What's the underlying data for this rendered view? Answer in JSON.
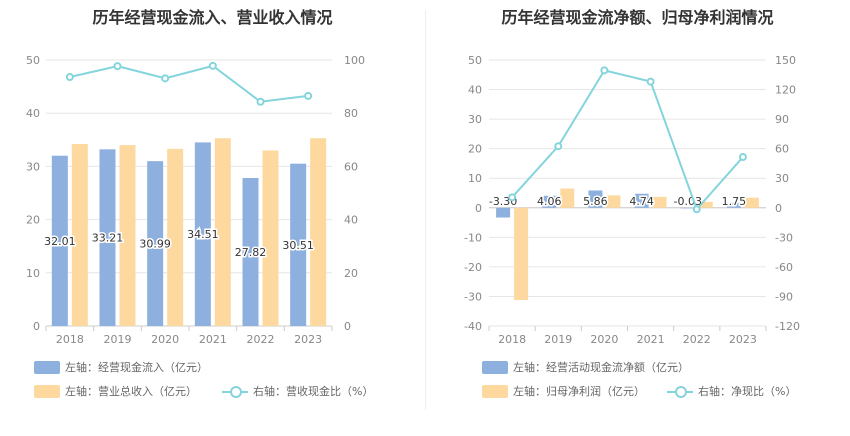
{
  "colors": {
    "bar_primary": "#8eb0de",
    "bar_secondary": "#fdd9a0",
    "line": "#84d4dc",
    "grid": "#e6e6e6",
    "axis_text": "#888888"
  },
  "chart_data": [
    {
      "type": "bar",
      "title": "历年经营现金流入、营业收入情况",
      "categories": [
        "2018",
        "2019",
        "2020",
        "2021",
        "2022",
        "2023"
      ],
      "y_left": {
        "min": 0,
        "max": 50,
        "ticks": [
          0,
          10,
          20,
          30,
          40,
          50
        ]
      },
      "y_right": {
        "min": 0,
        "max": 100,
        "ticks": [
          0,
          20,
          40,
          60,
          80,
          100
        ]
      },
      "series": [
        {
          "name": "经营现金流入",
          "axis": "left",
          "kind": "bar",
          "values": [
            32.01,
            33.21,
            30.99,
            34.51,
            27.82,
            30.51
          ],
          "labels": [
            "32.01",
            "33.21",
            "30.99",
            "34.51",
            "27.82",
            "30.51"
          ]
        },
        {
          "name": "营业总收入",
          "axis": "left",
          "kind": "bar",
          "values": [
            34.2,
            34.0,
            33.3,
            35.3,
            33.0,
            35.3
          ]
        },
        {
          "name": "营收现金比",
          "axis": "right",
          "kind": "line",
          "values": [
            93.6,
            97.7,
            93.1,
            97.8,
            84.3,
            86.5
          ]
        }
      ],
      "legend": [
        {
          "kind": "bar",
          "color_key": "bar_primary",
          "label": "左轴：经营现金流入（亿元）"
        },
        {
          "kind": "bar",
          "color_key": "bar_secondary",
          "label": "左轴：营业总收入（亿元）"
        },
        {
          "kind": "line",
          "color_key": "line",
          "label": "右轴：营收现金比（%）"
        }
      ]
    },
    {
      "type": "bar",
      "title": "历年经营现金流净额、归母净利润情况",
      "categories": [
        "2018",
        "2019",
        "2020",
        "2021",
        "2022",
        "2023"
      ],
      "y_left": {
        "min": -40,
        "max": 50,
        "ticks": [
          -40,
          -30,
          -20,
          -10,
          0,
          10,
          20,
          30,
          40,
          50
        ]
      },
      "y_right": {
        "min": -120,
        "max": 150,
        "ticks": [
          -120,
          -90,
          -60,
          -30,
          0,
          30,
          60,
          90,
          120,
          150
        ]
      },
      "series": [
        {
          "name": "经营活动现金流净额",
          "axis": "left",
          "kind": "bar",
          "values": [
            -3.3,
            4.06,
            5.86,
            4.74,
            -0.03,
            1.75
          ],
          "labels": [
            "-3.30",
            "4.06",
            "5.86",
            "4.74",
            "-0.03",
            "1.75"
          ]
        },
        {
          "name": "归母净利润",
          "axis": "left",
          "kind": "bar",
          "values": [
            -31.2,
            6.5,
            4.2,
            3.7,
            2.0,
            3.4
          ]
        },
        {
          "name": "净现比",
          "axis": "right",
          "kind": "line",
          "values": [
            10.6,
            62.5,
            139.5,
            128.1,
            -1.5,
            51.5
          ]
        }
      ],
      "legend": [
        {
          "kind": "bar",
          "color_key": "bar_primary",
          "label": "左轴：经营活动现金流净额（亿元）"
        },
        {
          "kind": "bar",
          "color_key": "bar_secondary",
          "label": "左轴：归母净利润（亿元）"
        },
        {
          "kind": "line",
          "color_key": "line",
          "label": "右轴：净现比（%）"
        }
      ]
    }
  ]
}
